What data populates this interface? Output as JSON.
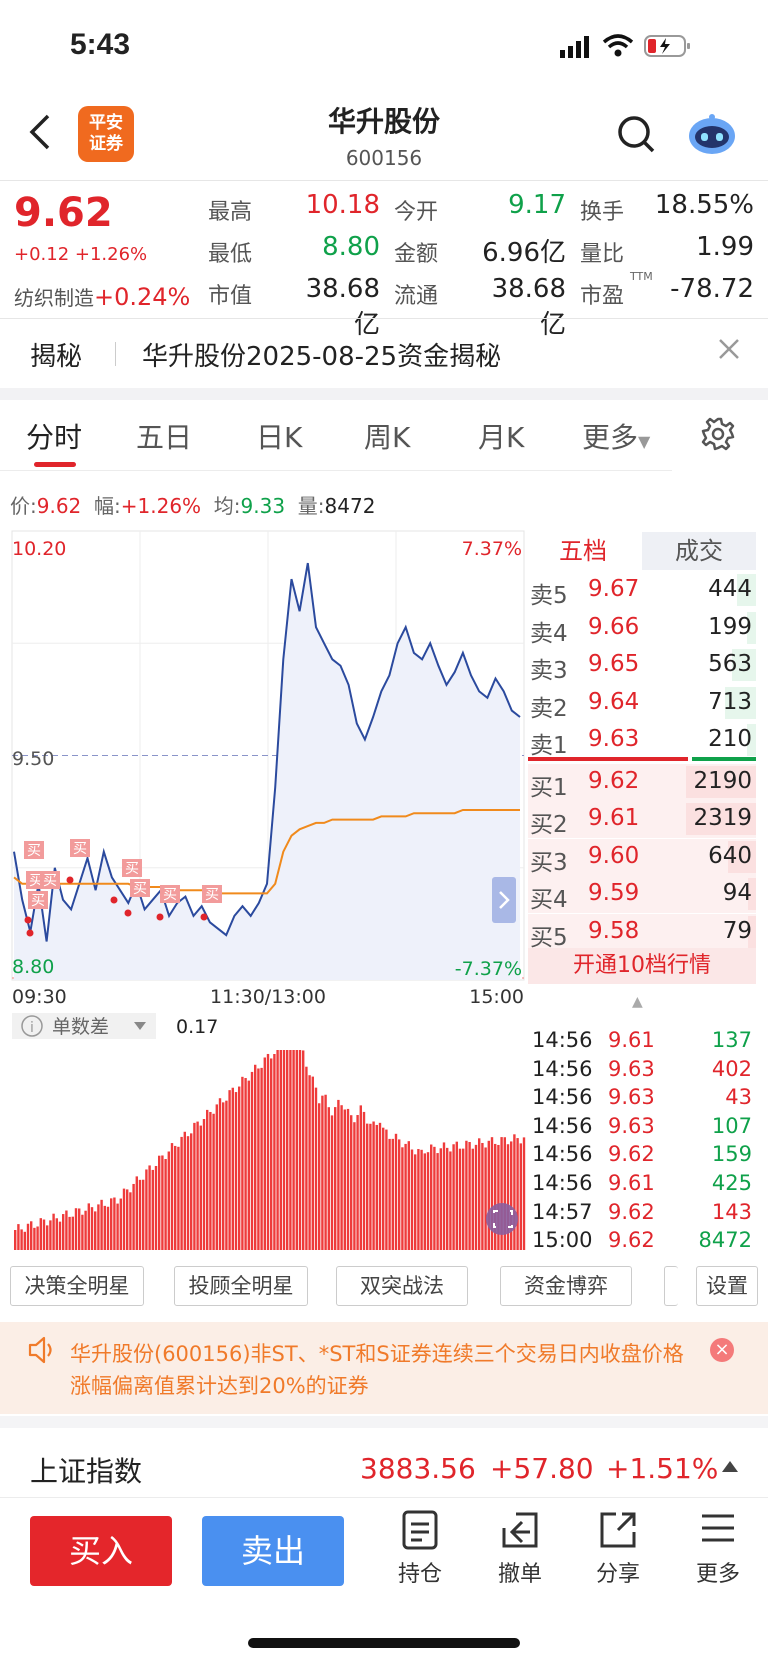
{
  "status": {
    "time": "5:43"
  },
  "header": {
    "title": "华升股份",
    "code": "600156",
    "logo_line1": "平安",
    "logo_line2": "证券"
  },
  "quote": {
    "price": "9.62",
    "change": "+0.12  +1.26%",
    "industry_name": "纺织制造",
    "industry_change": "+0.24%",
    "fields": [
      {
        "label": "最高",
        "value": "10.18",
        "color": "red"
      },
      {
        "label": "今开",
        "value": "9.17",
        "color": "green"
      },
      {
        "label": "换手",
        "value": "18.55%",
        "color": "black"
      },
      {
        "label": "最低",
        "value": "8.80",
        "color": "green"
      },
      {
        "label": "金额",
        "value": "6.96亿",
        "color": "black"
      },
      {
        "label": "量比",
        "value": "1.99",
        "color": "black"
      },
      {
        "label": "市值",
        "value": "38.68亿",
        "color": "black"
      },
      {
        "label": "流通",
        "value": "38.68亿",
        "color": "black"
      },
      {
        "label": "市盈",
        "value": "-78.72",
        "color": "black"
      }
    ],
    "ttm": "TTM"
  },
  "secret": {
    "label": "揭秘",
    "text": "华升股份2025-08-25资金揭秘"
  },
  "tabs": [
    "分时",
    "五日",
    "日K",
    "周K",
    "月K",
    "更多"
  ],
  "info_line": {
    "price_label": "价:",
    "price": "9.62",
    "amp_label": "幅:",
    "amp": "+1.26%",
    "avg_label": "均:",
    "avg": "9.33",
    "vol_label": "量:",
    "vol": "8472"
  },
  "chart_data": {
    "type": "line",
    "title": "",
    "ylim": [
      8.8,
      10.2
    ],
    "y_top_label": "10.20",
    "y_mid_label": "9.50",
    "y_bottom_label": "8.80",
    "pct_top": "7.37%",
    "pct_bottom": "-7.37%",
    "prev_close": 9.5,
    "x_ticks": [
      "09:30",
      "11:30/13:00",
      "15:00"
    ],
    "series": [
      {
        "values": [
          9.2,
          9.05,
          8.95,
          9.1,
          8.92,
          9.15,
          9.05,
          9.02,
          9.1,
          9.18,
          9.08,
          9.2,
          9.12,
          9.08,
          9.04,
          9.1,
          9.02,
          9.05,
          9.08,
          9.0,
          9.04,
          9.06,
          9.0,
          9.03,
          8.98,
          8.96,
          8.94,
          9.0,
          9.03,
          9.0,
          9.04,
          9.1,
          9.4,
          9.8,
          10.05,
          9.95,
          10.1,
          9.9,
          9.85,
          9.8,
          9.78,
          9.72,
          9.6,
          9.55,
          9.62,
          9.7,
          9.75,
          9.85,
          9.9,
          9.82,
          9.8,
          9.85,
          9.78,
          9.72,
          9.76,
          9.82,
          9.75,
          9.7,
          9.68,
          9.74,
          9.7,
          9.64,
          9.62
        ]
      },
      {
        "values": [
          9.12,
          9.1,
          9.1,
          9.11,
          9.11,
          9.1,
          9.1,
          9.1,
          9.1,
          9.1,
          9.1,
          9.1,
          9.1,
          9.1,
          9.1,
          9.09,
          9.09,
          9.09,
          9.09,
          9.09,
          9.08,
          9.08,
          9.08,
          9.08,
          9.08,
          9.07,
          9.07,
          9.07,
          9.07,
          9.07,
          9.07,
          9.07,
          9.1,
          9.2,
          9.25,
          9.27,
          9.28,
          9.29,
          9.29,
          9.3,
          9.3,
          9.3,
          9.3,
          9.3,
          9.3,
          9.31,
          9.31,
          9.31,
          9.31,
          9.32,
          9.32,
          9.32,
          9.32,
          9.32,
          9.32,
          9.33,
          9.33,
          9.33,
          9.33,
          9.33,
          9.33,
          9.33,
          9.33
        ]
      }
    ],
    "buy_marker_label": "买",
    "indicator": {
      "name": "单数差",
      "value": "0.17"
    }
  },
  "order_book": {
    "tab1": "五档",
    "tab2": "成交",
    "asks": [
      {
        "label": "卖5",
        "price": "9.67",
        "vol": "444"
      },
      {
        "label": "卖4",
        "price": "9.66",
        "vol": "199"
      },
      {
        "label": "卖3",
        "price": "9.65",
        "vol": "563"
      },
      {
        "label": "卖2",
        "price": "9.64",
        "vol": "713"
      },
      {
        "label": "卖1",
        "price": "9.63",
        "vol": "210"
      }
    ],
    "bids": [
      {
        "label": "买1",
        "price": "9.62",
        "vol": "2190"
      },
      {
        "label": "买2",
        "price": "9.61",
        "vol": "2319"
      },
      {
        "label": "买3",
        "price": "9.60",
        "vol": "640"
      },
      {
        "label": "买4",
        "price": "9.59",
        "vol": "94"
      },
      {
        "label": "买5",
        "price": "9.58",
        "vol": "79"
      }
    ],
    "open10": "开通10档行情"
  },
  "ticks": [
    {
      "time": "14:56",
      "price": "9.61",
      "vol": "137",
      "pc": "red",
      "vc": "green"
    },
    {
      "time": "14:56",
      "price": "9.63",
      "vol": "402",
      "pc": "red",
      "vc": "red"
    },
    {
      "time": "14:56",
      "price": "9.63",
      "vol": "43",
      "pc": "red",
      "vc": "red"
    },
    {
      "time": "14:56",
      "price": "9.63",
      "vol": "107",
      "pc": "red",
      "vc": "green"
    },
    {
      "time": "14:56",
      "price": "9.62",
      "vol": "159",
      "pc": "red",
      "vc": "green"
    },
    {
      "time": "14:56",
      "price": "9.61",
      "vol": "425",
      "pc": "red",
      "vc": "green"
    },
    {
      "time": "14:57",
      "price": "9.62",
      "vol": "143",
      "pc": "red",
      "vc": "red"
    },
    {
      "time": "15:00",
      "price": "9.62",
      "vol": "8472",
      "pc": "red",
      "vc": "green"
    }
  ],
  "chips": [
    "决策全明星",
    "投顾全明星",
    "双突战法",
    "资金博弈",
    "设置"
  ],
  "notice": "华升股份(600156)非ST、*ST和S证券连续三个交易日内收盘价格涨幅偏离值累计达到20%的证券",
  "index": {
    "name": "上证指数",
    "value": "3883.56",
    "change": "+57.80",
    "pct": "+1.51%"
  },
  "bottom": {
    "buy": "买入",
    "sell": "卖出",
    "actions": [
      "持仓",
      "撤单",
      "分享",
      "更多"
    ]
  },
  "colors": {
    "up": "#e0252b",
    "down": "#0fa14a",
    "accent": "#f06a1f"
  }
}
